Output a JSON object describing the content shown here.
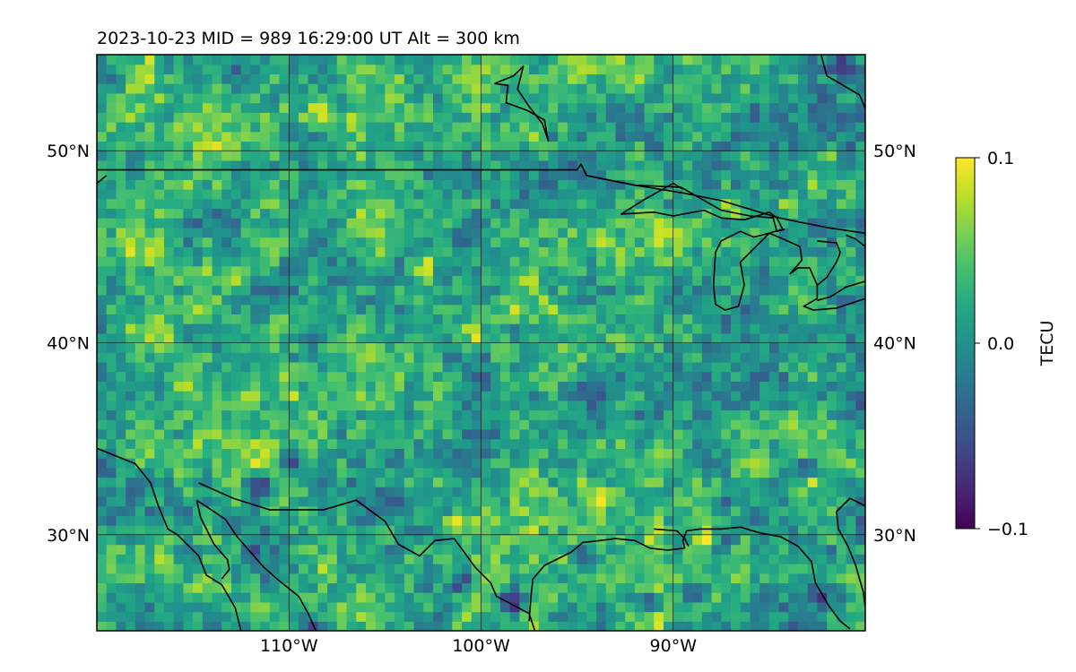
{
  "chart_data": {
    "type": "heatmap",
    "title": "2023-10-23  MID = 989    16:29:00  UT  Alt = 300 km",
    "map_extent": {
      "lon": [
        -120,
        -80
      ],
      "lat": [
        25,
        55
      ]
    },
    "x_ticks": [
      {
        "value": -110,
        "label": "110°W"
      },
      {
        "value": -100,
        "label": "100°W"
      },
      {
        "value": -90,
        "label": "90°W"
      }
    ],
    "y_ticks": [
      {
        "value": 50,
        "label": "50°N"
      },
      {
        "value": 40,
        "label": "40°N"
      },
      {
        "value": 30,
        "label": "30°N"
      }
    ],
    "grid": true,
    "colorbar": {
      "label": "TECU",
      "colormap": "viridis",
      "vmin": -0.1,
      "vmax": 0.1,
      "ticks": [
        {
          "value": 0.1,
          "label": "0.1"
        },
        {
          "value": 0.0,
          "label": "0.0"
        },
        {
          "value": -0.1,
          "label": "−0.1"
        }
      ]
    },
    "cell_size_deg": 0.5,
    "hotspots_high": [
      [
        -115.5,
        37.5
      ],
      [
        -112.5,
        43
      ],
      [
        -110.2,
        38.2
      ],
      [
        -108.5,
        52
      ],
      [
        -106.5,
        51.5
      ],
      [
        -103,
        44
      ],
      [
        -100.5,
        40.5
      ],
      [
        -94,
        32
      ],
      [
        -91,
        30.2
      ],
      [
        -88.2,
        30
      ],
      [
        -87,
        47
      ],
      [
        -84,
        47
      ],
      [
        -81,
        43.5
      ],
      [
        -101.5,
        30.5
      ],
      [
        -97,
        25.5
      ],
      [
        -114.2,
        45.5
      ]
    ],
    "hotspots_low": [
      [
        -111.5,
        32.5
      ],
      [
        -109,
        25.2
      ],
      [
        -101,
        27.5
      ],
      [
        -98.5,
        26.5
      ],
      [
        -91.5,
        26.5
      ],
      [
        -89,
        27
      ],
      [
        -87.5,
        29.5
      ],
      [
        -83.5,
        33.5
      ],
      [
        -82,
        27
      ],
      [
        -94.5,
        29
      ],
      [
        -81,
        54.5
      ],
      [
        -110,
        34
      ]
    ],
    "coastlines": [
      [
        [
          -120,
          49
        ],
        [
          -95,
          49
        ],
        [
          -94.8,
          49.3
        ],
        [
          -94.5,
          48.7
        ],
        [
          -92,
          48.2
        ],
        [
          -89.5,
          47.8
        ],
        [
          -87.5,
          47.4
        ],
        [
          -84.5,
          46.5
        ],
        [
          -82,
          46
        ],
        [
          -80,
          45.7
        ]
      ],
      [
        [
          -95,
          49
        ],
        [
          -94.8,
          49.3
        ],
        [
          -94.5,
          48.7
        ],
        [
          -92,
          48.2
        ],
        [
          -89.6,
          48.1
        ],
        [
          -87.5,
          46.9
        ],
        [
          -86,
          46.6
        ],
        [
          -84.8,
          46.5
        ],
        [
          -84.6,
          45.8
        ],
        [
          -84.2,
          45.9
        ]
      ],
      [
        [
          -89.5,
          48
        ],
        [
          -90,
          48.3
        ],
        [
          -91.6,
          47.4
        ],
        [
          -92.7,
          46.7
        ],
        [
          -91,
          46.8
        ],
        [
          -90,
          46.6
        ],
        [
          -88.4,
          46.9
        ],
        [
          -87.5,
          46.5
        ],
        [
          -86.3,
          46.4
        ],
        [
          -85,
          46.8
        ],
        [
          -84.6,
          46.5
        ],
        [
          -84.3,
          45.9
        ]
      ],
      [
        [
          -87.5,
          45.3
        ],
        [
          -86.5,
          45.8
        ],
        [
          -85.8,
          45.5
        ],
        [
          -85,
          45.7
        ],
        [
          -84.7,
          45.8
        ],
        [
          -84.2,
          45.9
        ]
      ],
      [
        [
          -87.5,
          45.3
        ],
        [
          -87.8,
          44.7
        ],
        [
          -87.9,
          43
        ],
        [
          -87.8,
          42
        ],
        [
          -87.3,
          41.7
        ],
        [
          -86.6,
          41.9
        ],
        [
          -86.3,
          43
        ],
        [
          -86.5,
          44.2
        ],
        [
          -85.7,
          45
        ],
        [
          -85,
          45.7
        ],
        [
          -84.5,
          45.5
        ],
        [
          -83.4,
          45
        ],
        [
          -83.3,
          44.3
        ],
        [
          -83.9,
          43.6
        ],
        [
          -83.5,
          43.9
        ],
        [
          -82.9,
          43.9
        ],
        [
          -82.5,
          43
        ],
        [
          -82.5,
          42.3
        ],
        [
          -83.2,
          41.9
        ],
        [
          -82.7,
          41.7
        ],
        [
          -81.5,
          41.8
        ],
        [
          -80,
          42.3
        ]
      ],
      [
        [
          -82.5,
          45.3
        ],
        [
          -81.5,
          45.2
        ],
        [
          -81.3,
          44.7
        ],
        [
          -81.5,
          44.2
        ],
        [
          -82,
          43.4
        ],
        [
          -82.5,
          43
        ]
      ],
      [
        [
          -80,
          43.2
        ],
        [
          -81,
          42.9
        ],
        [
          -81.8,
          42.4
        ],
        [
          -82.5,
          42.2
        ]
      ],
      [
        [
          -80,
          45
        ],
        [
          -80.5,
          45.4
        ],
        [
          -81,
          45.6
        ]
      ],
      [
        [
          -120,
          34.5
        ],
        [
          -118,
          33.7
        ],
        [
          -117.2,
          32.7
        ],
        [
          -116.8,
          31.5
        ],
        [
          -116.3,
          30.3
        ],
        [
          -115.8,
          30
        ],
        [
          -114.7,
          28.9
        ],
        [
          -114.3,
          27.9
        ],
        [
          -113.5,
          27.4
        ],
        [
          -112.8,
          26.2
        ],
        [
          -112.5,
          25
        ]
      ],
      [
        [
          -114.7,
          32.7
        ],
        [
          -112.9,
          31.9
        ],
        [
          -111,
          31.3
        ],
        [
          -108.2,
          31.3
        ],
        [
          -106.5,
          31.8
        ],
        [
          -105,
          30.7
        ],
        [
          -104.3,
          29.5
        ],
        [
          -103.2,
          28.9
        ],
        [
          -102.4,
          29.7
        ],
        [
          -101.4,
          29.8
        ],
        [
          -100.3,
          28.3
        ],
        [
          -99.5,
          27.5
        ],
        [
          -99.2,
          26.8
        ],
        [
          -97.5,
          25.9
        ],
        [
          -97.2,
          25
        ]
      ],
      [
        [
          -114.8,
          31.8
        ],
        [
          -114.2,
          31.4
        ],
        [
          -113.3,
          30.8
        ],
        [
          -112.7,
          29.9
        ],
        [
          -111.3,
          28.3
        ],
        [
          -110.5,
          27.6
        ],
        [
          -109.5,
          26.8
        ],
        [
          -109,
          25.9
        ],
        [
          -108.6,
          25
        ]
      ],
      [
        [
          -114.8,
          31.8
        ],
        [
          -114.6,
          30.9
        ],
        [
          -113.9,
          29.5
        ],
        [
          -113.2,
          28.7
        ],
        [
          -113.1,
          28.2
        ],
        [
          -113.5,
          27.7
        ]
      ],
      [
        [
          -97.5,
          25.5
        ],
        [
          -97.4,
          26.8
        ],
        [
          -97.3,
          27.7
        ],
        [
          -96.7,
          28.4
        ],
        [
          -95.3,
          29.1
        ],
        [
          -94.7,
          29.6
        ],
        [
          -93.8,
          29.7
        ],
        [
          -93,
          29.8
        ],
        [
          -92,
          29.7
        ],
        [
          -91.2,
          29.3
        ],
        [
          -90.3,
          29.2
        ],
        [
          -89.4,
          29.3
        ],
        [
          -89.5,
          29.7
        ],
        [
          -89.3,
          30.2
        ],
        [
          -88.6,
          30.3
        ],
        [
          -87.5,
          30.3
        ],
        [
          -86.5,
          30.4
        ],
        [
          -85.5,
          30.1
        ],
        [
          -84.4,
          29.9
        ],
        [
          -83.5,
          29.4
        ],
        [
          -82.8,
          28.6
        ],
        [
          -82.6,
          27.5
        ],
        [
          -81.9,
          26.3
        ],
        [
          -81.3,
          25.5
        ],
        [
          -80.8,
          25.1
        ]
      ],
      [
        [
          -91,
          30.3
        ],
        [
          -89.8,
          30.2
        ],
        [
          -89.4,
          29.8
        ],
        [
          -89.2,
          29.4
        ]
      ],
      [
        [
          -80,
          31.5
        ],
        [
          -80.8,
          31.9
        ],
        [
          -81.5,
          31.2
        ],
        [
          -81.4,
          30.3
        ],
        [
          -80.9,
          29.4
        ],
        [
          -80.5,
          28.4
        ],
        [
          -80.1,
          27
        ],
        [
          -80,
          26.2
        ]
      ],
      [
        [
          -120,
          48.3
        ],
        [
          -119.5,
          48.7
        ]
      ],
      [
        [
          -80,
          52.2
        ],
        [
          -80.3,
          52.9
        ],
        [
          -82,
          53.9
        ],
        [
          -82.3,
          55
        ]
      ],
      [
        [
          -99.3,
          53.5
        ],
        [
          -98.3,
          53.9
        ],
        [
          -97.8,
          54.4
        ],
        [
          -98.1,
          53.2
        ],
        [
          -97.5,
          52.3
        ],
        [
          -96.8,
          51.4
        ],
        [
          -96.5,
          50.5
        ],
        [
          -96.7,
          51.6
        ],
        [
          -97.6,
          52.1
        ],
        [
          -98.7,
          52.5
        ],
        [
          -98.6,
          53.4
        ],
        [
          -99.3,
          53.5
        ]
      ]
    ]
  }
}
